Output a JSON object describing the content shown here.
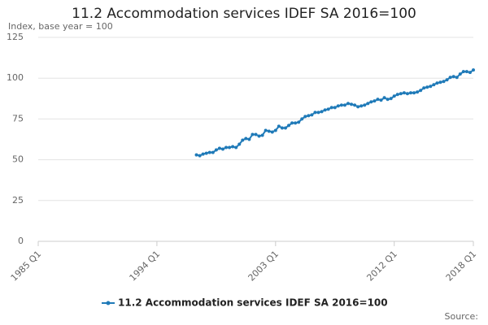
{
  "chart_data": {
    "type": "line",
    "title": "11.2 Accommodation services IDEF SA 2016=100",
    "y_label": "Index, base year = 100",
    "source_label": "Source:",
    "categories": [
      "1985 Q1",
      null,
      null,
      null,
      null,
      null,
      null,
      null,
      null,
      null,
      null,
      null,
      null,
      null,
      null,
      null,
      null,
      null,
      null,
      null,
      null,
      null,
      null,
      null,
      null,
      null,
      null,
      null,
      null,
      null,
      null,
      null,
      null,
      null,
      null,
      null,
      "1994 Q1",
      null,
      null,
      null,
      null,
      null,
      null,
      null,
      null,
      null,
      null,
      null,
      null,
      null,
      null,
      null,
      null,
      null,
      null,
      null,
      null,
      null,
      null,
      null,
      null,
      null,
      null,
      null,
      null,
      null,
      null,
      null,
      null,
      null,
      null,
      null,
      "2003 Q1",
      null,
      null,
      null,
      null,
      null,
      null,
      null,
      null,
      null,
      null,
      null,
      null,
      null,
      null,
      null,
      null,
      null,
      null,
      null,
      null,
      null,
      null,
      null,
      null,
      null,
      null,
      null,
      null,
      null,
      null,
      null,
      null,
      null,
      null,
      null,
      "2012 Q1",
      null,
      null,
      null,
      null,
      null,
      null,
      null,
      null,
      null,
      null,
      null,
      null,
      null,
      null,
      null,
      null,
      null,
      null,
      null,
      null,
      null,
      null,
      null,
      "2018 Q1"
    ],
    "series": [
      {
        "name": "11.2 Accommodation services IDEF SA 2016=100",
        "color": "#1f7ab8",
        "values": [
          null,
          null,
          null,
          null,
          null,
          null,
          null,
          null,
          null,
          null,
          null,
          null,
          null,
          null,
          null,
          null,
          null,
          null,
          null,
          null,
          null,
          null,
          null,
          null,
          null,
          null,
          null,
          null,
          null,
          null,
          null,
          null,
          null,
          null,
          null,
          null,
          null,
          null,
          null,
          null,
          null,
          null,
          null,
          null,
          null,
          null,
          null,
          null,
          53,
          52.5,
          53.5,
          54,
          54.5,
          54.5,
          56,
          57,
          56.5,
          57.5,
          57.5,
          58,
          57.5,
          59.5,
          62,
          63,
          62.5,
          65.5,
          65.5,
          64.5,
          65,
          68,
          67.5,
          67,
          68,
          70.5,
          69.5,
          69.5,
          71,
          72.5,
          72.5,
          73,
          75,
          76.5,
          77,
          77.5,
          79,
          79,
          79.5,
          80.5,
          81,
          82,
          82,
          83,
          83.5,
          83.5,
          84.5,
          84,
          83.5,
          82.5,
          83,
          83.5,
          84.5,
          85.5,
          86,
          87,
          86.5,
          88,
          87,
          87.5,
          89,
          90,
          90.5,
          91,
          90.5,
          91,
          91,
          91.5,
          92.5,
          94,
          94.5,
          95,
          96,
          97,
          97.5,
          98,
          99,
          100.5,
          101,
          100.5,
          102.5,
          104,
          104,
          103.5,
          105
        ]
      }
    ],
    "ylim": [
      0,
      125
    ],
    "yticks": [
      0,
      25,
      50,
      75,
      100,
      125
    ],
    "grid": true
  }
}
